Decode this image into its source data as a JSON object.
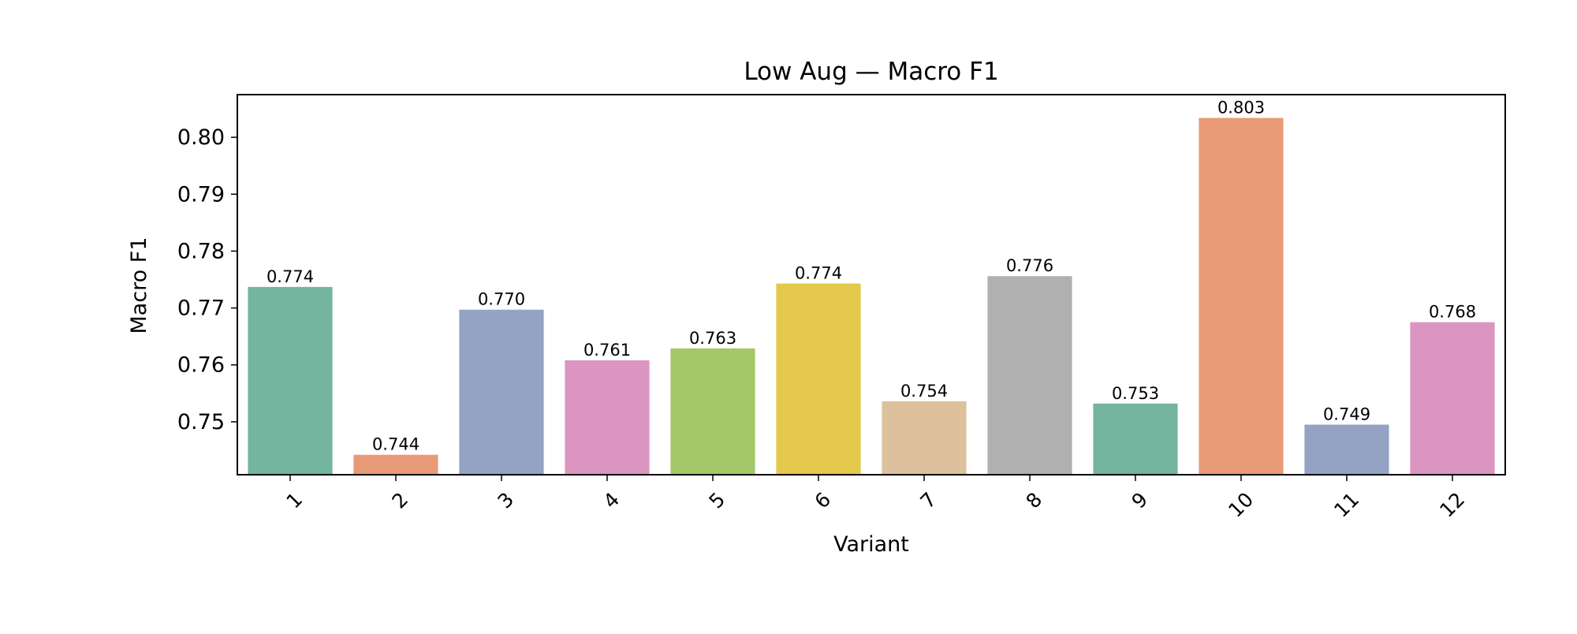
{
  "chart_data": {
    "type": "bar",
    "title": "Low Aug — Macro F1",
    "xlabel": "Variant",
    "ylabel": "Macro F1",
    "categories": [
      "1",
      "2",
      "3",
      "4",
      "5",
      "6",
      "7",
      "8",
      "9",
      "10",
      "11",
      "12"
    ],
    "values": [
      0.7737,
      0.7442,
      0.7697,
      0.7608,
      0.7629,
      0.7743,
      0.7536,
      0.7756,
      0.7532,
      0.8034,
      0.7495,
      0.7675
    ],
    "data_labels": [
      "0.774",
      "0.744",
      "0.770",
      "0.761",
      "0.763",
      "0.774",
      "0.754",
      "0.776",
      "0.753",
      "0.803",
      "0.749",
      "0.768"
    ],
    "ylim": [
      0.7407,
      0.8075
    ],
    "yticks": [
      0.75,
      0.76,
      0.77,
      0.78,
      0.79,
      0.8
    ],
    "ytick_labels": [
      "0.75",
      "0.76",
      "0.77",
      "0.78",
      "0.79",
      "0.80"
    ],
    "colors": [
      "#73b59f",
      "#e89a77",
      "#94a3c3",
      "#db95c0",
      "#a4c768",
      "#e3c84c",
      "#dcc19c",
      "#b0b0b0",
      "#73b59f",
      "#e89a77",
      "#94a3c3",
      "#db95c0"
    ],
    "grid": false,
    "legend": "none"
  }
}
